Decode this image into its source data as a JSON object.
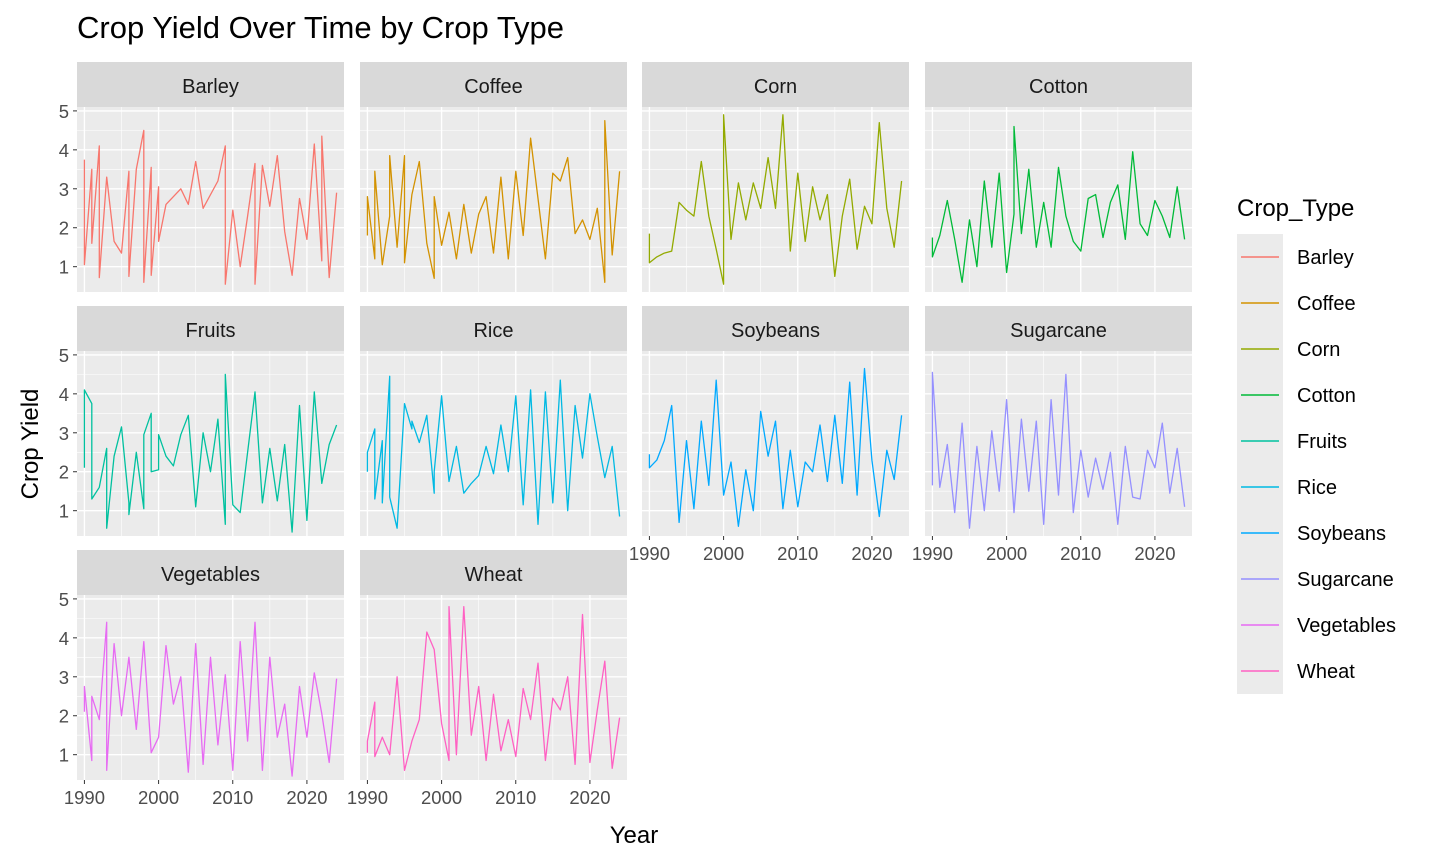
{
  "chart_data": {
    "type": "line",
    "title": "Crop Yield Over Time by Crop Type",
    "xlabel": "Year",
    "ylabel": "Crop Yield",
    "xlim": [
      1989,
      2025
    ],
    "ylim": [
      0.35,
      5.1
    ],
    "x_ticks": [
      1990,
      2000,
      2010,
      2020
    ],
    "y_ticks": [
      1,
      2,
      3,
      4,
      5
    ],
    "grid": true,
    "facet_wrap": true,
    "legend": {
      "title": "Crop_Type",
      "position": "right"
    },
    "series": [
      {
        "name": "Barley",
        "color": "#F8766D",
        "x": [
          1990,
          1990,
          1991,
          1991,
          1992,
          1992,
          1993,
          1994,
          1995,
          1996,
          1996,
          1997,
          1998,
          1998,
          1999,
          1999,
          2000,
          2000,
          2001,
          2003,
          2004,
          2005,
          2006,
          2008,
          2009,
          2009,
          2010,
          2011,
          2012,
          2013,
          2013,
          2014,
          2015,
          2016,
          2017,
          2018,
          2019,
          2020,
          2021,
          2022,
          2022,
          2023,
          2024
        ],
        "y": [
          3.75,
          1.05,
          3.5,
          1.6,
          4.1,
          0.72,
          3.3,
          1.65,
          1.35,
          3.45,
          0.75,
          3.5,
          4.5,
          0.6,
          3.55,
          0.78,
          3.05,
          1.65,
          2.6,
          3.0,
          2.6,
          3.7,
          2.5,
          3.2,
          4.1,
          0.55,
          2.45,
          1.0,
          2.3,
          3.65,
          0.55,
          3.6,
          2.55,
          3.85,
          1.9,
          0.78,
          2.75,
          1.7,
          4.15,
          1.15,
          4.35,
          0.72,
          2.9
        ]
      },
      {
        "name": "Coffee",
        "color": "#D39200",
        "x": [
          1990,
          1990,
          1991,
          1991,
          1992,
          1993,
          1993,
          1994,
          1995,
          1995,
          1996,
          1997,
          1998,
          1999,
          1999,
          2000,
          2001,
          2002,
          2003,
          2004,
          2005,
          2006,
          2007,
          2008,
          2009,
          2010,
          2011,
          2012,
          2013,
          2014,
          2015,
          2016,
          2017,
          2018,
          2019,
          2020,
          2021,
          2022,
          2022,
          2023,
          2024
        ],
        "y": [
          1.8,
          2.8,
          1.2,
          3.45,
          1.05,
          2.3,
          3.85,
          1.5,
          3.85,
          1.1,
          2.85,
          3.7,
          1.6,
          0.7,
          2.8,
          1.55,
          2.4,
          1.2,
          2.6,
          1.35,
          2.35,
          2.8,
          1.35,
          3.3,
          1.2,
          3.45,
          1.8,
          4.3,
          2.75,
          1.2,
          3.4,
          3.2,
          3.8,
          1.85,
          2.2,
          1.7,
          2.5,
          0.6,
          4.75,
          1.3,
          3.45
        ]
      },
      {
        "name": "Corn",
        "color": "#93AA00",
        "x": [
          1990,
          1990,
          1991,
          1992,
          1993,
          1994,
          1995,
          1996,
          1997,
          1998,
          1999,
          2000,
          2000,
          2001,
          2002,
          2003,
          2004,
          2005,
          2006,
          2007,
          2008,
          2009,
          2010,
          2011,
          2012,
          2013,
          2014,
          2015,
          2016,
          2017,
          2018,
          2019,
          2020,
          2021,
          2022,
          2023,
          2024
        ],
        "y": [
          1.85,
          1.1,
          1.25,
          1.35,
          1.4,
          2.65,
          2.45,
          2.3,
          3.7,
          2.3,
          1.45,
          0.55,
          4.9,
          1.7,
          3.15,
          2.2,
          3.15,
          2.5,
          3.8,
          2.5,
          4.9,
          1.4,
          3.4,
          1.65,
          3.05,
          2.2,
          2.85,
          0.75,
          2.3,
          3.25,
          1.45,
          2.55,
          2.1,
          4.7,
          2.5,
          1.5,
          3.2
        ]
      },
      {
        "name": "Cotton",
        "color": "#00BA38",
        "x": [
          1990,
          1990,
          1991,
          1992,
          1993,
          1994,
          1995,
          1996,
          1997,
          1998,
          1999,
          2000,
          2001,
          2001,
          2002,
          2003,
          2004,
          2005,
          2006,
          2007,
          2008,
          2009,
          2010,
          2011,
          2012,
          2013,
          2014,
          2015,
          2016,
          2017,
          2018,
          2019,
          2020,
          2021,
          2022,
          2023,
          2024
        ],
        "y": [
          1.75,
          1.25,
          1.8,
          2.7,
          1.7,
          0.6,
          2.2,
          1.0,
          3.2,
          1.5,
          3.4,
          0.85,
          2.35,
          4.6,
          1.85,
          3.5,
          1.5,
          2.65,
          1.5,
          3.55,
          2.3,
          1.65,
          1.4,
          2.75,
          2.85,
          1.75,
          2.65,
          3.1,
          1.7,
          3.95,
          2.1,
          1.8,
          2.7,
          2.3,
          1.75,
          3.05,
          1.7
        ]
      },
      {
        "name": "Fruits",
        "color": "#00C19F",
        "x": [
          1990,
          1990,
          1991,
          1991,
          1992,
          1993,
          1993,
          1994,
          1995,
          1996,
          1996,
          1997,
          1998,
          1998,
          1999,
          1999,
          2000,
          2000,
          2001,
          2002,
          2003,
          2004,
          2005,
          2006,
          2007,
          2008,
          2009,
          2009,
          2010,
          2011,
          2012,
          2013,
          2014,
          2015,
          2016,
          2017,
          2018,
          2019,
          2020,
          2021,
          2022,
          2023,
          2024
        ],
        "y": [
          2.1,
          4.1,
          3.75,
          1.3,
          1.6,
          2.6,
          0.55,
          2.4,
          3.15,
          1.2,
          0.9,
          2.5,
          1.05,
          2.95,
          3.5,
          2.0,
          2.05,
          2.95,
          2.4,
          2.15,
          2.95,
          3.45,
          1.1,
          3.0,
          2.0,
          3.35,
          0.65,
          4.5,
          1.15,
          0.95,
          2.5,
          4.05,
          1.2,
          2.6,
          1.25,
          2.7,
          0.45,
          3.7,
          0.75,
          4.05,
          1.7,
          2.7,
          3.2
        ]
      },
      {
        "name": "Rice",
        "color": "#00B9E3",
        "x": [
          1990,
          1990,
          1991,
          1991,
          1992,
          1992,
          1993,
          1993,
          1994,
          1995,
          1996,
          1996,
          1997,
          1998,
          1999,
          1999,
          2000,
          2001,
          2002,
          2003,
          2004,
          2005,
          2006,
          2007,
          2008,
          2009,
          2010,
          2011,
          2012,
          2013,
          2014,
          2015,
          2016,
          2017,
          2018,
          2019,
          2020,
          2021,
          2022,
          2023,
          2024
        ],
        "y": [
          2.0,
          2.5,
          3.1,
          1.3,
          2.8,
          1.2,
          4.45,
          1.35,
          0.55,
          3.75,
          3.1,
          3.3,
          2.75,
          3.45,
          1.45,
          2.0,
          3.95,
          1.75,
          2.65,
          1.45,
          1.7,
          1.9,
          2.65,
          1.95,
          3.2,
          2.0,
          3.95,
          1.15,
          4.1,
          0.65,
          4.05,
          1.2,
          4.35,
          1.0,
          3.7,
          2.35,
          4.0,
          2.9,
          1.85,
          2.65,
          0.85
        ]
      },
      {
        "name": "Soybeans",
        "color": "#00A9FF",
        "x": [
          1990,
          1990,
          1991,
          1992,
          1993,
          1994,
          1995,
          1996,
          1997,
          1998,
          1999,
          2000,
          2001,
          2002,
          2003,
          2004,
          2005,
          2006,
          2007,
          2008,
          2009,
          2010,
          2011,
          2012,
          2013,
          2014,
          2015,
          2016,
          2017,
          2018,
          2019,
          2020,
          2021,
          2022,
          2023,
          2024
        ],
        "y": [
          2.45,
          2.1,
          2.3,
          2.8,
          3.7,
          0.7,
          2.8,
          1.05,
          3.3,
          1.65,
          4.35,
          1.4,
          2.25,
          0.6,
          2.05,
          1.0,
          3.55,
          2.4,
          3.3,
          1.05,
          2.55,
          1.1,
          2.25,
          2.0,
          3.2,
          1.75,
          3.45,
          1.7,
          4.3,
          1.4,
          4.65,
          2.3,
          0.85,
          2.55,
          1.8,
          3.45
        ]
      },
      {
        "name": "Sugarcane",
        "color": "#9590FF",
        "x": [
          1990,
          1990,
          1991,
          1992,
          1993,
          1994,
          1995,
          1996,
          1997,
          1998,
          1999,
          2000,
          2001,
          2002,
          2003,
          2004,
          2005,
          2006,
          2007,
          2008,
          2009,
          2010,
          2011,
          2012,
          2013,
          2014,
          2015,
          2016,
          2017,
          2018,
          2019,
          2020,
          2021,
          2022,
          2023,
          2024
        ],
        "y": [
          1.65,
          4.55,
          1.6,
          2.7,
          0.95,
          3.25,
          0.55,
          2.65,
          1.0,
          3.05,
          1.5,
          3.85,
          0.95,
          3.35,
          1.5,
          3.3,
          0.65,
          3.85,
          1.4,
          4.5,
          0.95,
          2.55,
          1.35,
          2.35,
          1.55,
          2.5,
          0.65,
          2.65,
          1.35,
          1.3,
          2.55,
          2.1,
          3.25,
          1.45,
          2.6,
          1.1
        ]
      },
      {
        "name": "Vegetables",
        "color": "#E76BF3",
        "x": [
          1990,
          1990,
          1991,
          1991,
          1992,
          1993,
          1993,
          1994,
          1995,
          1996,
          1997,
          1998,
          1999,
          2000,
          2001,
          2002,
          2003,
          2004,
          2005,
          2006,
          2007,
          2008,
          2009,
          2010,
          2011,
          2012,
          2013,
          2014,
          2015,
          2016,
          2017,
          2018,
          2019,
          2020,
          2021,
          2022,
          2023,
          2024
        ],
        "y": [
          2.1,
          2.75,
          0.85,
          2.5,
          1.9,
          4.4,
          0.6,
          3.85,
          2.0,
          3.5,
          1.65,
          3.9,
          1.05,
          1.45,
          3.8,
          2.3,
          3.0,
          0.55,
          3.85,
          0.75,
          3.5,
          1.25,
          3.05,
          0.6,
          3.9,
          1.35,
          4.4,
          0.6,
          3.5,
          1.45,
          2.3,
          0.45,
          2.75,
          1.45,
          3.1,
          2.05,
          0.8,
          2.95
        ]
      },
      {
        "name": "Wheat",
        "color": "#FF61C3",
        "x": [
          1990,
          1990,
          1991,
          1991,
          1992,
          1993,
          1994,
          1995,
          1996,
          1997,
          1998,
          1999,
          2000,
          2001,
          2001,
          2002,
          2003,
          2004,
          2005,
          2006,
          2007,
          2008,
          2009,
          2010,
          2011,
          2012,
          2013,
          2014,
          2015,
          2016,
          2017,
          2018,
          2019,
          2020,
          2021,
          2022,
          2023,
          2024
        ],
        "y": [
          1.05,
          1.35,
          2.35,
          0.95,
          1.45,
          1.0,
          3.0,
          0.6,
          1.35,
          1.9,
          4.15,
          3.7,
          1.8,
          0.85,
          4.8,
          1.0,
          4.8,
          1.5,
          2.75,
          0.85,
          2.55,
          1.1,
          1.9,
          0.95,
          2.7,
          1.9,
          3.35,
          0.85,
          2.45,
          2.15,
          3.0,
          0.75,
          4.6,
          0.8,
          2.15,
          3.4,
          0.65,
          1.95
        ]
      }
    ]
  }
}
